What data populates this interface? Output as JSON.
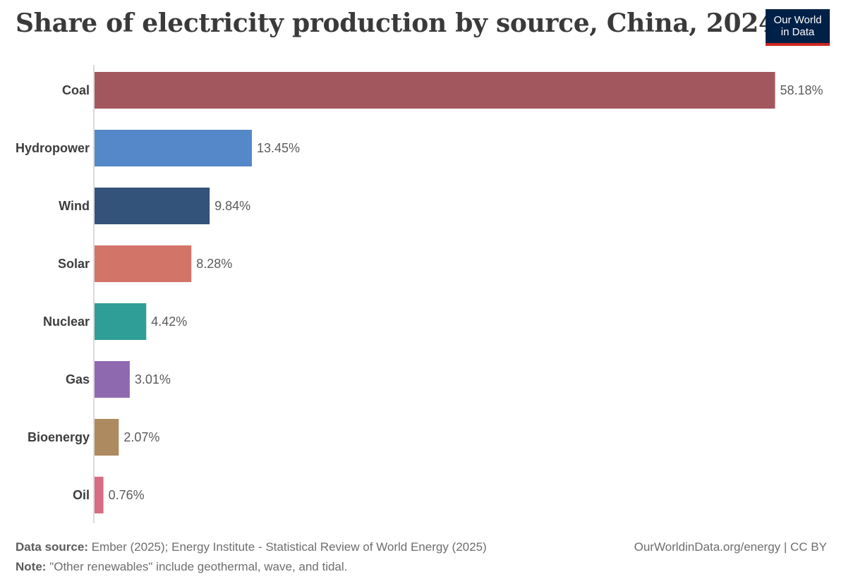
{
  "header": {
    "title": "Share of electricity production by source, China, 2024",
    "logo_line1": "Our World",
    "logo_line2": "in Data"
  },
  "chart_data": {
    "type": "bar",
    "orientation": "horizontal",
    "title": "Share of electricity production by source, China, 2024",
    "categories": [
      "Coal",
      "Hydropower",
      "Wind",
      "Solar",
      "Nuclear",
      "Gas",
      "Bioenergy",
      "Oil"
    ],
    "values": [
      58.18,
      13.45,
      9.84,
      8.28,
      4.42,
      3.01,
      2.07,
      0.76
    ],
    "value_labels": [
      "58.18%",
      "13.45%",
      "9.84%",
      "8.28%",
      "4.42%",
      "3.01%",
      "2.07%",
      "0.76%"
    ],
    "colors": [
      "#a2575f",
      "#5588c8",
      "#34537a",
      "#d27467",
      "#2f9e96",
      "#8e69b0",
      "#ad8a60",
      "#d76c82"
    ],
    "xlim": [
      0,
      58.18
    ],
    "xlabel": "",
    "ylabel": "",
    "grid": false
  },
  "footer": {
    "source_label": "Data source:",
    "source_text": "Ember (2025); Energy Institute - Statistical Review of World Energy (2025)",
    "note_label": "Note:",
    "note_text": "\"Other renewables\" include geothermal, wave, and tidal.",
    "credit": "OurWorldinData.org/energy | CC BY"
  }
}
